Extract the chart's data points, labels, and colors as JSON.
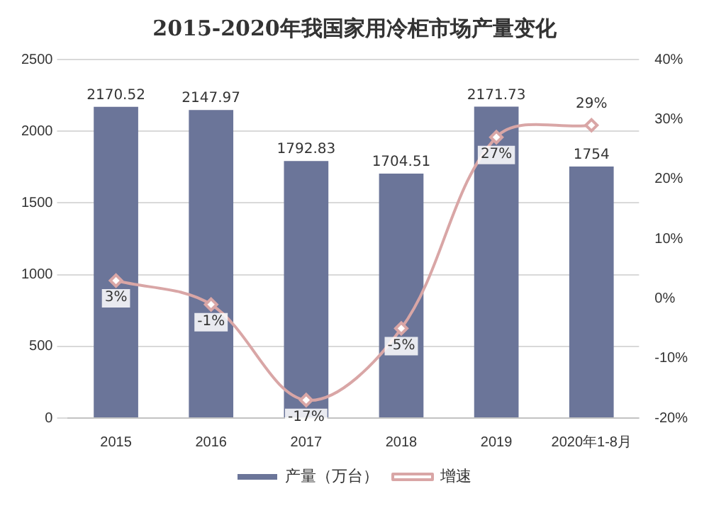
{
  "chart_data": {
    "type": "bar",
    "title": "2015-2020年我国家用冷柜市场产量变化",
    "categories": [
      "2015",
      "2016",
      "2017",
      "2018",
      "2019",
      "2020年1-8月"
    ],
    "series": [
      {
        "name": "产量（万台）",
        "color": "#6b7599",
        "values": [
          2170.52,
          2147.97,
          1792.83,
          1704.51,
          2171.73,
          1754
        ],
        "value_labels": [
          "2170.52",
          "2147.97",
          "1792.83",
          "1704.51",
          "2171.73",
          "1754"
        ]
      },
      {
        "name": "增速",
        "type": "line",
        "axis": "y2",
        "color": "#d9a6a6",
        "marker": "diamond",
        "values": [
          3,
          -1,
          -17,
          -5,
          27,
          29
        ],
        "value_labels": [
          "3%",
          "-1%",
          "-17%",
          "-5%",
          "27%",
          "29%"
        ]
      }
    ],
    "ylim": [
      0,
      2500
    ],
    "yticks": [
      0,
      500,
      1000,
      1500,
      2000,
      2500
    ],
    "y2lim": [
      -20,
      40
    ],
    "y2ticks": [
      {
        "value": -20,
        "label": "-20%"
      },
      {
        "value": -10,
        "label": "-10%"
      },
      {
        "value": 0,
        "label": "0%"
      },
      {
        "value": 10,
        "label": "10%"
      },
      {
        "value": 20,
        "label": "20%"
      },
      {
        "value": 30,
        "label": "30%"
      },
      {
        "value": 40,
        "label": "40%"
      }
    ],
    "grid": "y",
    "legend": "bottom"
  }
}
